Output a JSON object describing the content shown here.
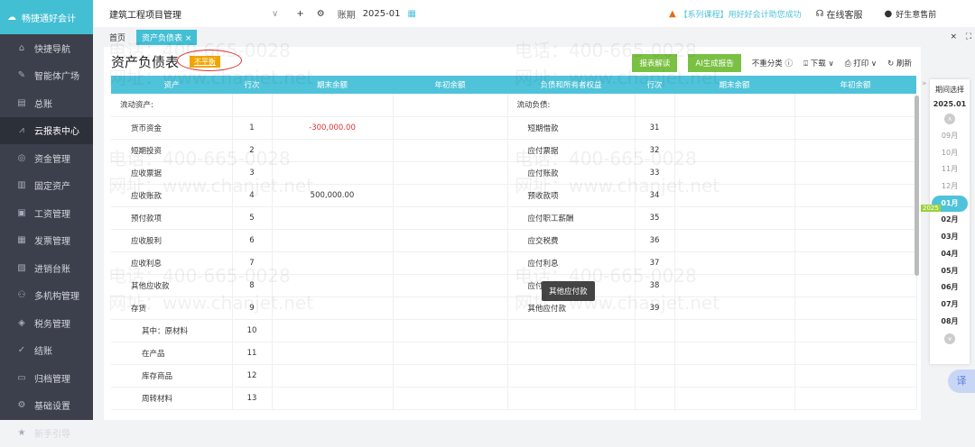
{
  "app": {
    "logo": "畅捷通好会计"
  },
  "sidebar": {
    "items": [
      {
        "label": "快捷导航",
        "icon": "home-icon",
        "glyph": "⌂"
      },
      {
        "label": "智能体广场",
        "icon": "agent-icon",
        "glyph": "✎"
      },
      {
        "label": "总账",
        "icon": "ledger-icon",
        "glyph": "▤"
      },
      {
        "label": "云报表中心",
        "icon": "chart-icon",
        "glyph": "⩘"
      },
      {
        "label": "资金管理",
        "icon": "money-icon",
        "glyph": "◎"
      },
      {
        "label": "固定资产",
        "icon": "asset-icon",
        "glyph": "▥"
      },
      {
        "label": "工资管理",
        "icon": "salary-icon",
        "glyph": "▣"
      },
      {
        "label": "发票管理",
        "icon": "invoice-icon",
        "glyph": "▦"
      },
      {
        "label": "进销台账",
        "icon": "stock-icon",
        "glyph": "▧"
      },
      {
        "label": "多机构管理",
        "icon": "org-icon",
        "glyph": "⚇"
      },
      {
        "label": "税务管理",
        "icon": "tax-icon",
        "glyph": "◈"
      },
      {
        "label": "结账",
        "icon": "close-account-icon",
        "glyph": "✓"
      },
      {
        "label": "归档管理",
        "icon": "archive-icon",
        "glyph": "▭"
      },
      {
        "label": "基础设置",
        "icon": "settings-icon",
        "glyph": "⚙"
      },
      {
        "label": "新手引导",
        "icon": "guide-icon",
        "glyph": "★"
      }
    ],
    "active": 3
  },
  "topbar": {
    "account": "建筑工程项目管理",
    "period_label": "账期",
    "period": "2025-01",
    "promo": "【系列课程】用好好会计助您成功",
    "service": "在线客服",
    "user": "好生意售前"
  },
  "tabs": {
    "home": "首页",
    "active": "资产负债表 ×"
  },
  "page": {
    "title": "资产负债表",
    "status_badge": "不平衡",
    "btn_interpret": "报表解读",
    "btn_ai": "AI生成报告",
    "reclass": "不重分类 ⓘ",
    "download": "下载 ∨",
    "print": "打印 ∨",
    "refresh": "刷新"
  },
  "table": {
    "headers": [
      "资产",
      "行次",
      "期末余额",
      "年初余额",
      "负债和所有者权益",
      "行次",
      "期末余额",
      "年初余额"
    ],
    "rows": [
      [
        "流动资产:",
        "",
        "",
        "",
        "流动负债:",
        "",
        "",
        "",
        0,
        0
      ],
      [
        "货币资金",
        "1",
        "-300,000.00",
        "",
        "短期借款",
        "31",
        "",
        "",
        1,
        1
      ],
      [
        "短期投资",
        "2",
        "",
        "",
        "应付票据",
        "32",
        "",
        "",
        1,
        1
      ],
      [
        "应收票据",
        "3",
        "",
        "",
        "应付账款",
        "33",
        "",
        "",
        1,
        1
      ],
      [
        "应收账款",
        "4",
        "500,000.00",
        "",
        "预收款项",
        "34",
        "",
        "",
        1,
        1
      ],
      [
        "预付款项",
        "5",
        "",
        "",
        "应付职工薪酬",
        "35",
        "",
        "",
        1,
        1
      ],
      [
        "应收股利",
        "6",
        "",
        "",
        "应交税费",
        "36",
        "",
        "",
        1,
        1
      ],
      [
        "应收利息",
        "7",
        "",
        "",
        "应付利息",
        "37",
        "",
        "",
        1,
        1
      ],
      [
        "其他应收款",
        "8",
        "",
        "",
        "应付利润",
        "38",
        "",
        "",
        1,
        1
      ],
      [
        "存货",
        "9",
        "",
        "",
        "其他应付款",
        "39",
        "",
        "",
        1,
        1
      ],
      [
        "其中：原材料",
        "10",
        "",
        "",
        "",
        "",
        "",
        "",
        2,
        1
      ],
      [
        "在产品",
        "11",
        "",
        "",
        "",
        "",
        "",
        "",
        2,
        1
      ],
      [
        "库存商品",
        "12",
        "",
        "",
        "",
        "",
        "",
        "",
        2,
        1
      ],
      [
        "周转材料",
        "13",
        "",
        "",
        "",
        "",
        "",
        "",
        2,
        1
      ]
    ]
  },
  "tooltip": "其他应付款",
  "period_panel": {
    "title": "期间选择",
    "current": "2025.01",
    "year_tag": "2025",
    "months": [
      "09月",
      "10月",
      "11月",
      "12月",
      "01月",
      "02月",
      "03月",
      "04月",
      "05月",
      "06月",
      "07月",
      "08月"
    ],
    "selected": "01月"
  },
  "watermark": {
    "phone": "电话：400-665-0028",
    "site": "网址：www.chanjet.net"
  },
  "colors": {
    "accent": "#4fc3d9",
    "green": "#7ac043",
    "warning": "#f0a500",
    "negative": "#d33333"
  }
}
